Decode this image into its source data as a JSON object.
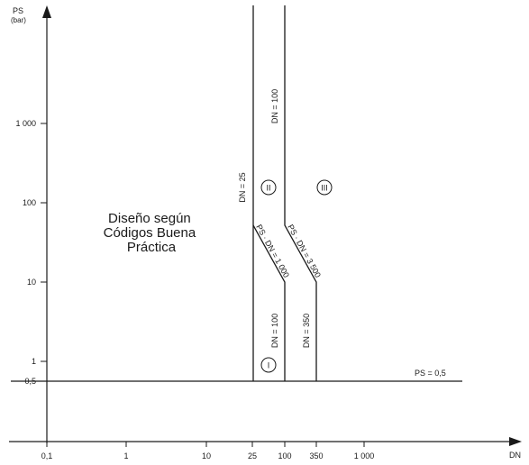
{
  "axes": {
    "y_title": "PS",
    "y_unit": "(bar)",
    "x_title": "DN",
    "y_ticks": [
      "0,5",
      "1",
      "10",
      "100",
      "1 000"
    ],
    "x_ticks": [
      "0,1",
      "1",
      "10",
      "25",
      "100",
      "350",
      "1 000"
    ]
  },
  "zone_text": [
    "Diseño según",
    "Códigos Buena",
    "Práctica"
  ],
  "curve_labels": {
    "dn25": "DN = 25",
    "dn100_top": "DN = 100",
    "dn100_bottom": "DN = 100",
    "dn350": "DN = 350",
    "ps_dn_1000": "PS · DN = 1 000",
    "ps_dn_3500": "PS · DN = 3 500",
    "ps_05": "PS = 0,5"
  },
  "categories": [
    "I",
    "II",
    "III"
  ]
}
